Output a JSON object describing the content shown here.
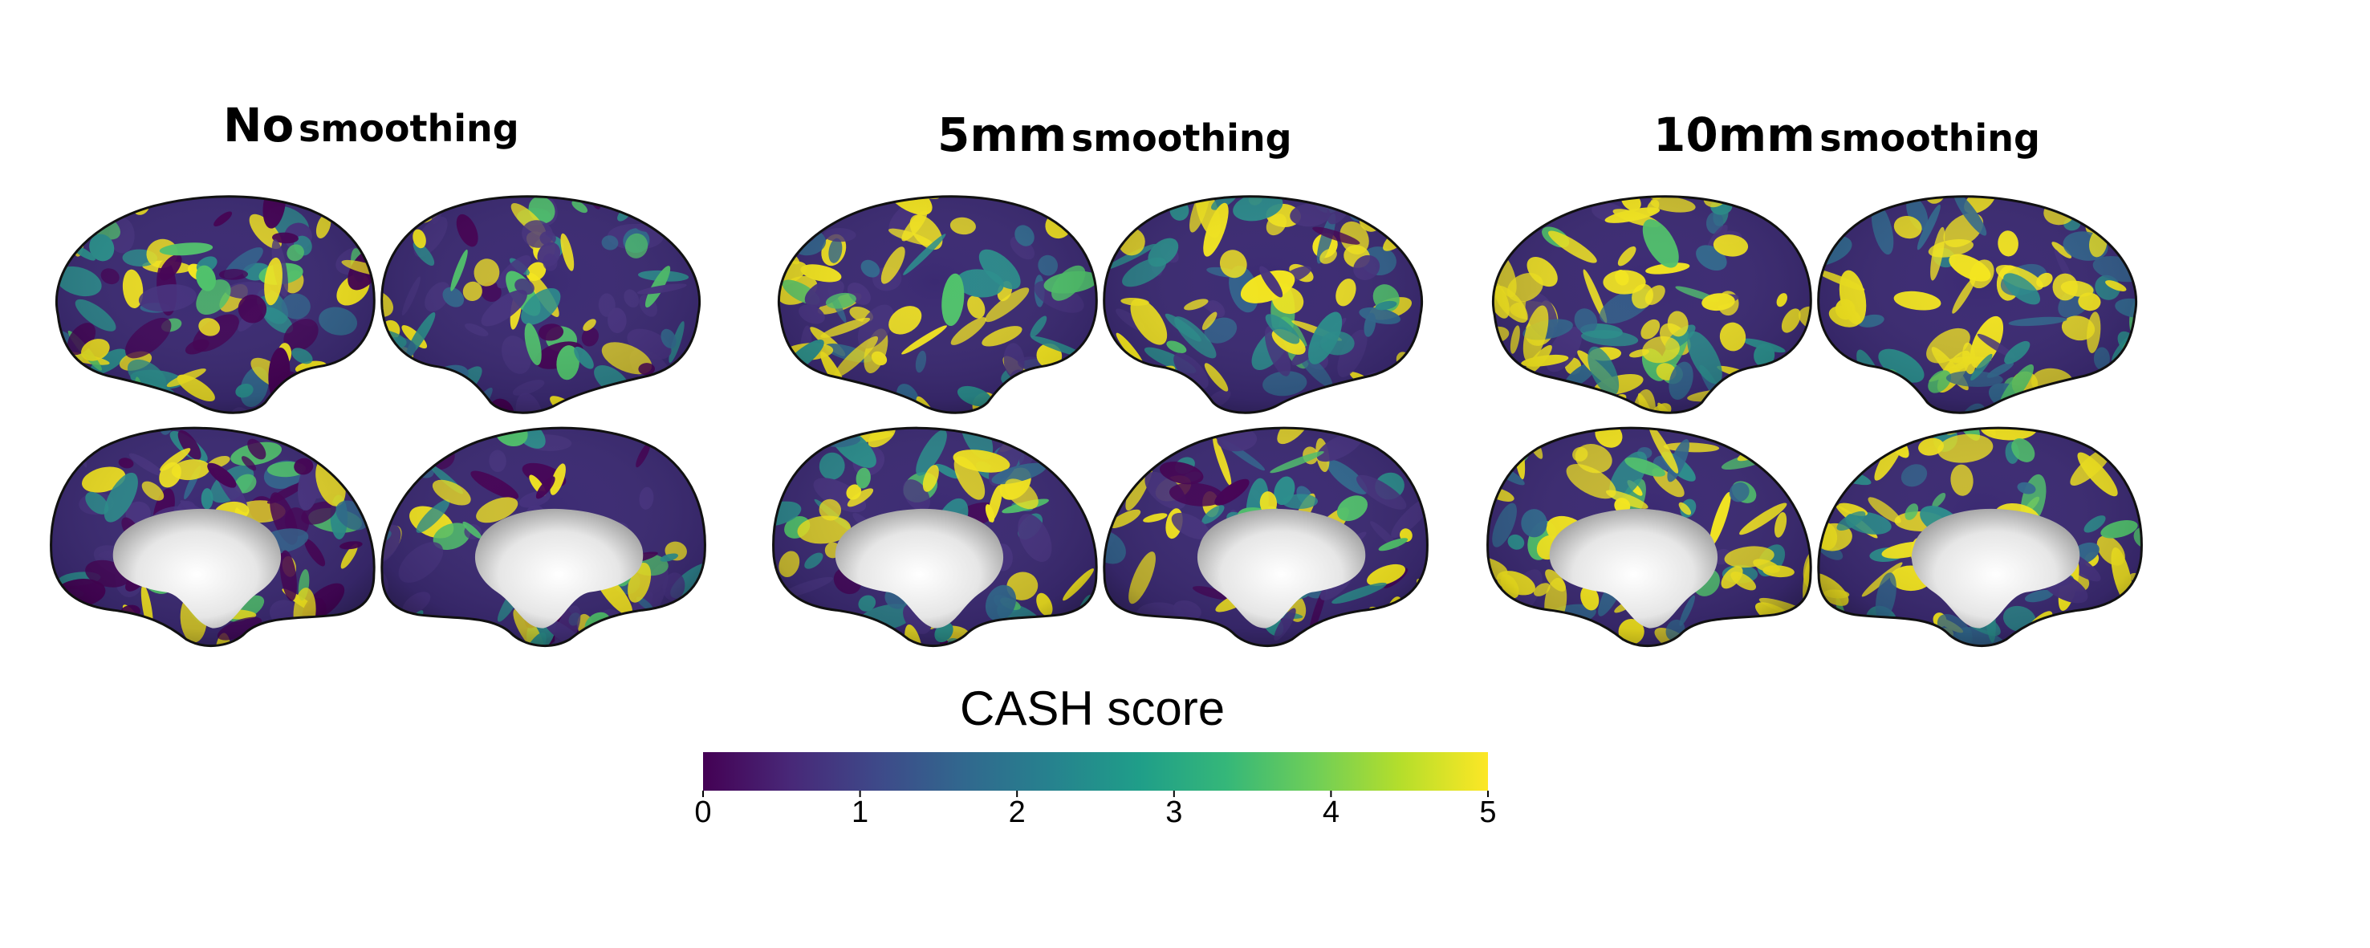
{
  "panels": [
    {
      "id": "none",
      "title_main": "No",
      "title_sub": "smoothing",
      "yellow_level": 0.22
    },
    {
      "id": "5mm",
      "title_main": "5mm",
      "title_sub": "smoothing",
      "yellow_level": 0.36
    },
    {
      "id": "10mm",
      "title_main": "10mm",
      "title_sub": "smoothing",
      "yellow_level": 0.55
    }
  ],
  "views": [
    "left-lateral",
    "right-lateral",
    "left-medial",
    "right-medial"
  ],
  "colorbar": {
    "title": "CASH score",
    "min": 0,
    "max": 5,
    "ticks": [
      "0",
      "1",
      "2",
      "3",
      "4",
      "5"
    ],
    "colormap": "viridis",
    "colors": [
      "#440154",
      "#482878",
      "#3e4989",
      "#31688e",
      "#26828e",
      "#1f9e89",
      "#35b779",
      "#6ece58",
      "#b5de2b",
      "#fde725"
    ]
  },
  "colors": {
    "outline": "#111111",
    "medial_wall": "#e9e9e9",
    "background": "#ffffff"
  }
}
